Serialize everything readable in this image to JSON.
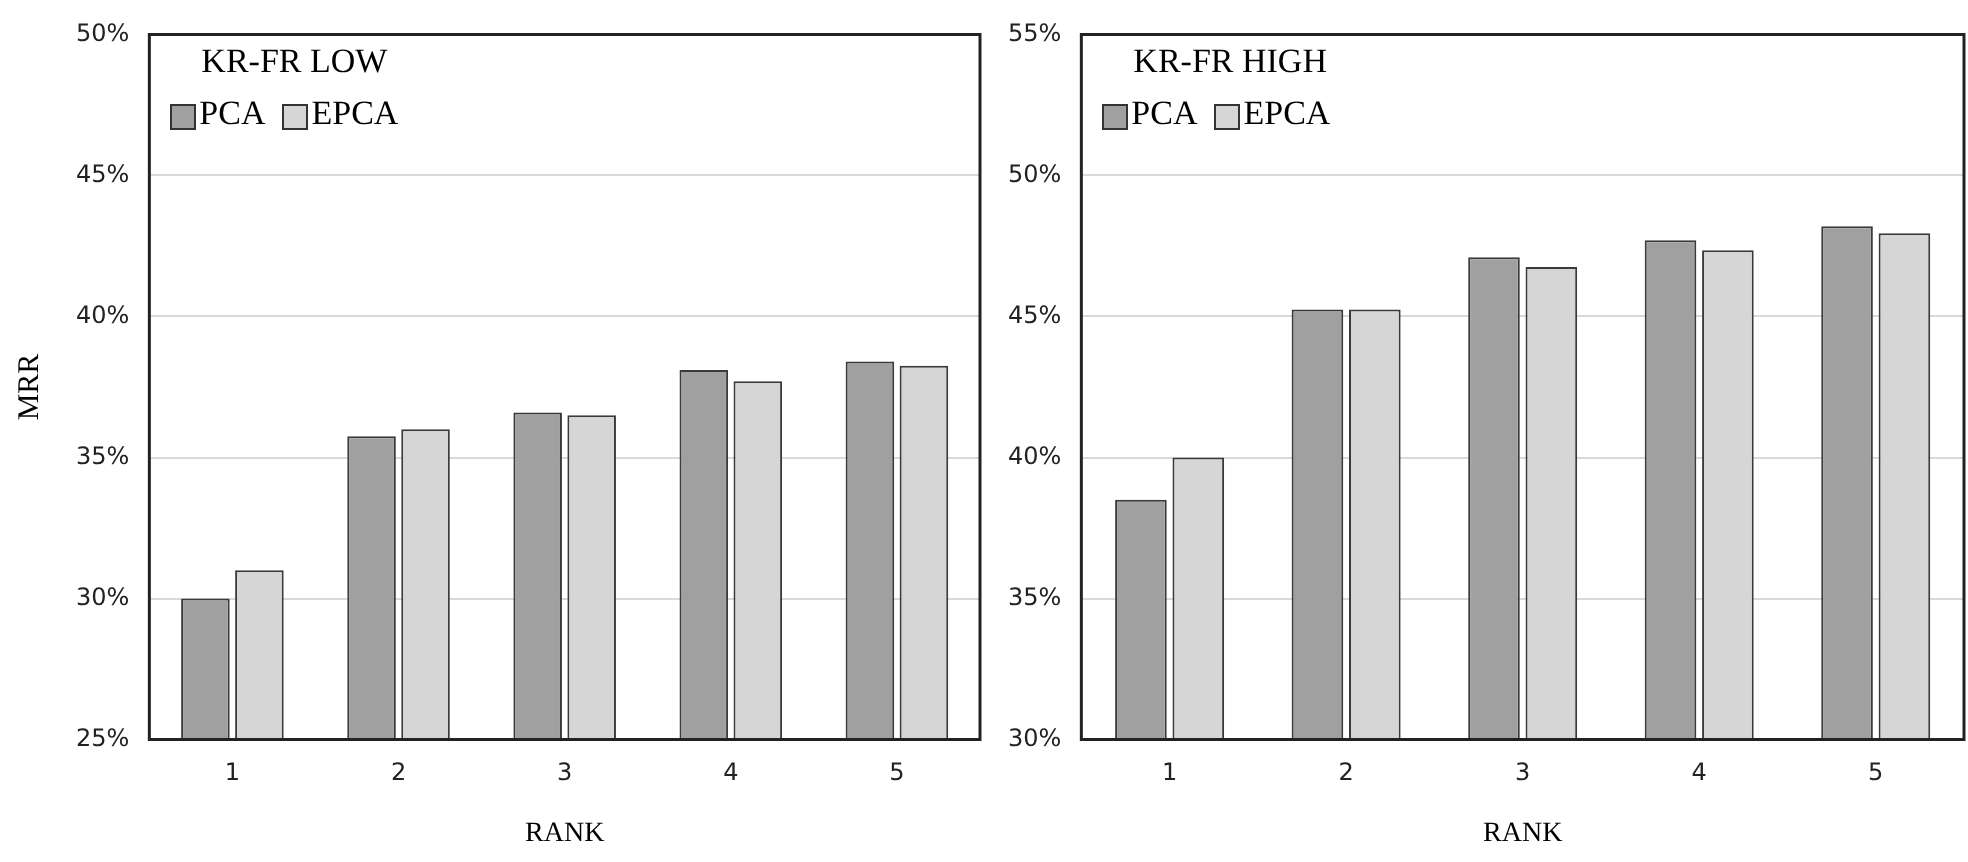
{
  "chart_data": [
    {
      "type": "bar",
      "title": "KR-FR LOW",
      "xlabel": "RANK",
      "ylabel": "MRR",
      "categories": [
        "1",
        "2",
        "3",
        "4",
        "5"
      ],
      "series": [
        {
          "name": "PCA",
          "color": "#a0a0a0",
          "values": [
            30.0,
            35.75,
            36.6,
            38.1,
            38.4
          ]
        },
        {
          "name": "EPCA",
          "color": "#d6d6d6",
          "values": [
            31.0,
            36.0,
            36.5,
            37.7,
            38.25
          ]
        }
      ],
      "ylim": [
        25,
        50
      ],
      "yticks": [
        {
          "value": 25,
          "label": "25%"
        },
        {
          "value": 30,
          "label": "30%"
        },
        {
          "value": 35,
          "label": "35%"
        },
        {
          "value": 40,
          "label": "40%"
        },
        {
          "value": 45,
          "label": "45%"
        },
        {
          "value": 50,
          "label": "50%"
        }
      ],
      "grid": "y",
      "legend": "top left"
    },
    {
      "type": "bar",
      "title": "KR-FR HIGH",
      "xlabel": "RANK",
      "categories": [
        "1",
        "2",
        "3",
        "4",
        "5"
      ],
      "series": [
        {
          "name": "PCA",
          "color": "#a0a0a0",
          "values": [
            38.5,
            45.25,
            47.1,
            47.7,
            48.2
          ]
        },
        {
          "name": "EPCA",
          "color": "#d6d6d6",
          "values": [
            40.0,
            45.25,
            46.75,
            47.35,
            47.95
          ]
        }
      ],
      "ylim": [
        30,
        55
      ],
      "yticks": [
        {
          "value": 30,
          "label": "30%"
        },
        {
          "value": 35,
          "label": "35%"
        },
        {
          "value": 40,
          "label": "40%"
        },
        {
          "value": 45,
          "label": "45%"
        },
        {
          "value": 50,
          "label": "50%"
        },
        {
          "value": 55,
          "label": "55%"
        }
      ],
      "grid": "y",
      "legend": "top left"
    }
  ]
}
